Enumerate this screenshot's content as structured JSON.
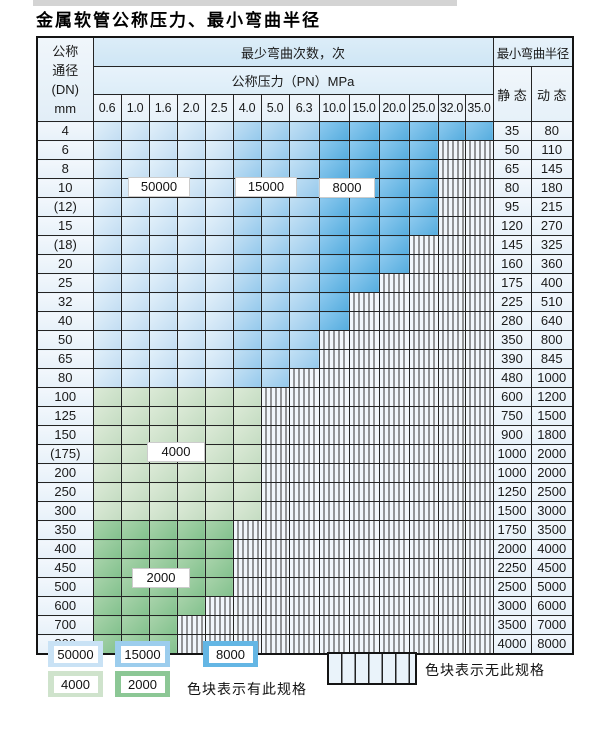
{
  "title": "金属软管公称压力、最小弯曲半径",
  "table": {
    "dn_header_lines": [
      "公称",
      "通径",
      "(DN)",
      "mm"
    ],
    "bend_header": "最少弯曲次数，次",
    "pressure_header": "公称压力（PN）MPa",
    "radius_header": "最小弯曲半径",
    "static_header": "静 态",
    "dynamic_header": "动 态",
    "columns": [
      "0.6",
      "1.0",
      "1.6",
      "2.0",
      "2.5",
      "4.0",
      "5.0",
      "6.3",
      "10.0",
      "15.0",
      "20.0",
      "25.0",
      "32.0",
      "35.0"
    ],
    "blue_zone_breaks": [
      5,
      8
    ],
    "zone_cycle_values": {
      "blue_light": "50000",
      "blue_mid": "15000",
      "blue_dark": "8000",
      "green_light": "4000",
      "green_dark": "2000"
    },
    "rows": [
      {
        "dn": "4",
        "colored": 14,
        "scheme": "blue",
        "static": "35",
        "dynamic": "80"
      },
      {
        "dn": "6",
        "colored": 12,
        "scheme": "blue",
        "static": "50",
        "dynamic": "110"
      },
      {
        "dn": "8",
        "colored": 12,
        "scheme": "blue",
        "static": "65",
        "dynamic": "145"
      },
      {
        "dn": "10",
        "colored": 12,
        "scheme": "blue",
        "static": "80",
        "dynamic": "180"
      },
      {
        "dn": "(12)",
        "colored": 12,
        "scheme": "blue",
        "static": "95",
        "dynamic": "215"
      },
      {
        "dn": "15",
        "colored": 12,
        "scheme": "blue",
        "static": "120",
        "dynamic": "270"
      },
      {
        "dn": "(18)",
        "colored": 11,
        "scheme": "blue",
        "static": "145",
        "dynamic": "325"
      },
      {
        "dn": "20",
        "colored": 11,
        "scheme": "blue",
        "static": "160",
        "dynamic": "360"
      },
      {
        "dn": "25",
        "colored": 10,
        "scheme": "blue",
        "static": "175",
        "dynamic": "400"
      },
      {
        "dn": "32",
        "colored": 9,
        "scheme": "blue",
        "static": "225",
        "dynamic": "510"
      },
      {
        "dn": "40",
        "colored": 9,
        "scheme": "blue",
        "static": "280",
        "dynamic": "640"
      },
      {
        "dn": "50",
        "colored": 8,
        "scheme": "blue",
        "static": "350",
        "dynamic": "800"
      },
      {
        "dn": "65",
        "colored": 8,
        "scheme": "blue",
        "static": "390",
        "dynamic": "845"
      },
      {
        "dn": "80",
        "colored": 7,
        "scheme": "blue",
        "static": "480",
        "dynamic": "1000"
      },
      {
        "dn": "100",
        "colored": 6,
        "scheme": "green_light",
        "static": "600",
        "dynamic": "1200"
      },
      {
        "dn": "125",
        "colored": 6,
        "scheme": "green_light",
        "static": "750",
        "dynamic": "1500"
      },
      {
        "dn": "150",
        "colored": 6,
        "scheme": "green_light",
        "static": "900",
        "dynamic": "1800"
      },
      {
        "dn": "(175)",
        "colored": 6,
        "scheme": "green_light",
        "static": "1000",
        "dynamic": "2000"
      },
      {
        "dn": "200",
        "colored": 6,
        "scheme": "green_light",
        "static": "1000",
        "dynamic": "2000"
      },
      {
        "dn": "250",
        "colored": 6,
        "scheme": "green_light",
        "static": "1250",
        "dynamic": "2500"
      },
      {
        "dn": "300",
        "colored": 6,
        "scheme": "green_light",
        "static": "1500",
        "dynamic": "3000"
      },
      {
        "dn": "350",
        "colored": 5,
        "scheme": "green_dark",
        "static": "1750",
        "dynamic": "3500"
      },
      {
        "dn": "400",
        "colored": 5,
        "scheme": "green_dark",
        "static": "2000",
        "dynamic": "4000"
      },
      {
        "dn": "450",
        "colored": 5,
        "scheme": "green_dark",
        "static": "2250",
        "dynamic": "4500"
      },
      {
        "dn": "500",
        "colored": 5,
        "scheme": "green_dark",
        "static": "2500",
        "dynamic": "5000"
      },
      {
        "dn": "600",
        "colored": 4,
        "scheme": "green_dark",
        "static": "3000",
        "dynamic": "6000"
      },
      {
        "dn": "700",
        "colored": 3,
        "scheme": "green_dark",
        "static": "3500",
        "dynamic": "7000"
      },
      {
        "dn": "800",
        "colored": 3,
        "scheme": "green_dark",
        "static": "4000",
        "dynamic": "8000"
      }
    ]
  },
  "overlays": {
    "v50000": "50000",
    "v15000": "15000",
    "v8000": "8000",
    "v4000": "4000",
    "v2000": "2000"
  },
  "legend": {
    "row1": [
      {
        "label": "50000",
        "scheme": "blue_light"
      },
      {
        "label": "15000",
        "scheme": "blue_mid"
      },
      {
        "label": "8000",
        "scheme": "blue_dark"
      }
    ],
    "row2": [
      {
        "label": "4000",
        "scheme": "green_light"
      },
      {
        "label": "2000",
        "scheme": "green_dark"
      }
    ],
    "has_note": "色块表示有此规格",
    "none_note": "色块表示无此规格"
  },
  "colors": {
    "blue_light": "#c9e2f5",
    "blue_mid": "#9ccded",
    "blue_dark": "#64b6e4",
    "green_light": "#cfe3cc",
    "green_dark": "#8cc795",
    "hatch_bg": "#f1f6fb",
    "grid_line": "#242424"
  }
}
